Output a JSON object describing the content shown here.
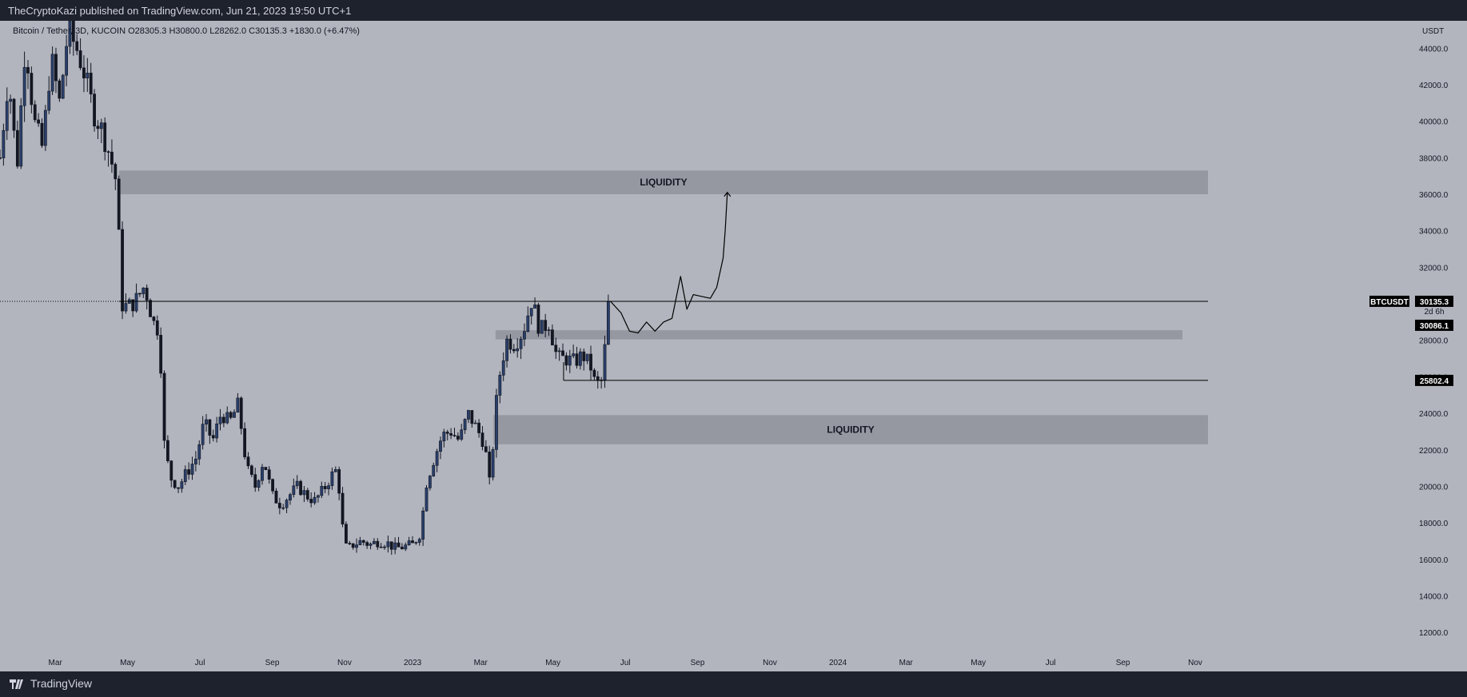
{
  "header": {
    "published": "TheCryptoKazi published on TradingView.com, Jun 21, 2023 19:50 UTC+1"
  },
  "footer": {
    "brand": "TradingView"
  },
  "colors": {
    "background": "#b2b5be",
    "chart_frame": "#1e222d",
    "candle_body": "#131722",
    "candle_up_body": "#2a3f6b",
    "zone_fill": "#9598a1",
    "line": "#000000",
    "label_bg": "#000000",
    "label_text": "#ffffff"
  },
  "icons": {
    "brand_logo": "tradingview-logo-icon"
  },
  "chart_data": {
    "type": "candlestick",
    "symbol_line": "Bitcoin / Tether, 3D, KUCOIN  O28305.3  H30800.0  L28262.0  C30135.3  +1830.0 (+6.47%)",
    "currency": "USDT",
    "ylim": [
      11000,
      45500
    ],
    "y_ticks": [
      12000,
      14000,
      16000,
      18000,
      20000,
      22000,
      24000,
      26000,
      28000,
      30000,
      32000,
      34000,
      36000,
      38000,
      40000,
      42000,
      44000
    ],
    "y_tick_labels": [
      "12000.0",
      "14000.0",
      "16000.0",
      "18000.0",
      "20000.0",
      "22000.0",
      "24000.0",
      "26000.0",
      "28000.0",
      "30000.0",
      "32000.0",
      "34000.0",
      "36000.0",
      "38000.0",
      "40000.0",
      "42000.0",
      "44000.0"
    ],
    "x_ticks": [
      {
        "label": "Mar",
        "t": 2022.16
      },
      {
        "label": "May",
        "t": 2022.33
      },
      {
        "label": "Jul",
        "t": 2022.5
      },
      {
        "label": "Sep",
        "t": 2022.67
      },
      {
        "label": "Nov",
        "t": 2022.84
      },
      {
        "label": "2023",
        "t": 2023.0
      },
      {
        "label": "Mar",
        "t": 2023.16
      },
      {
        "label": "May",
        "t": 2023.33
      },
      {
        "label": "Jul",
        "t": 2023.5
      },
      {
        "label": "Sep",
        "t": 2023.67
      },
      {
        "label": "Nov",
        "t": 2023.84
      },
      {
        "label": "2024",
        "t": 2024.0
      },
      {
        "label": "Mar",
        "t": 2024.16
      },
      {
        "label": "May",
        "t": 2024.33
      },
      {
        "label": "Jul",
        "t": 2024.5
      },
      {
        "label": "Sep",
        "t": 2024.67
      },
      {
        "label": "Nov",
        "t": 2024.84
      }
    ],
    "xlim": [
      2022.03,
      2024.87
    ],
    "price_path": [
      [
        2022.03,
        38000
      ],
      [
        2022.05,
        42500
      ],
      [
        2022.07,
        37500
      ],
      [
        2022.09,
        44500
      ],
      [
        2022.11,
        40000
      ],
      [
        2022.13,
        38500
      ],
      [
        2022.15,
        43500
      ],
      [
        2022.17,
        41000
      ],
      [
        2022.19,
        45000
      ],
      [
        2022.21,
        44000
      ],
      [
        2022.23,
        42500
      ],
      [
        2022.25,
        40500
      ],
      [
        2022.27,
        39500
      ],
      [
        2022.29,
        38000
      ],
      [
        2022.305,
        36500
      ],
      [
        2022.315,
        30000
      ],
      [
        2022.33,
        29800
      ],
      [
        2022.35,
        30200
      ],
      [
        2022.37,
        31000
      ],
      [
        2022.39,
        29000
      ],
      [
        2022.405,
        28500
      ],
      [
        2022.415,
        22500
      ],
      [
        2022.43,
        20500
      ],
      [
        2022.45,
        20000
      ],
      [
        2022.47,
        20800
      ],
      [
        2022.49,
        21500
      ],
      [
        2022.51,
        23500
      ],
      [
        2022.53,
        22500
      ],
      [
        2022.55,
        24000
      ],
      [
        2022.57,
        23500
      ],
      [
        2022.59,
        24500
      ],
      [
        2022.61,
        21000
      ],
      [
        2022.63,
        20000
      ],
      [
        2022.65,
        21500
      ],
      [
        2022.67,
        19500
      ],
      [
        2022.69,
        19000
      ],
      [
        2022.71,
        19500
      ],
      [
        2022.73,
        20000
      ],
      [
        2022.75,
        19500
      ],
      [
        2022.77,
        19200
      ],
      [
        2022.79,
        19800
      ],
      [
        2022.81,
        20600
      ],
      [
        2022.825,
        21000
      ],
      [
        2022.83,
        18500
      ],
      [
        2022.845,
        16500
      ],
      [
        2022.86,
        16800
      ],
      [
        2022.88,
        17000
      ],
      [
        2022.9,
        16800
      ],
      [
        2022.92,
        17000
      ],
      [
        2022.94,
        16900
      ],
      [
        2022.96,
        16600
      ],
      [
        2022.98,
        16700
      ],
      [
        2023.0,
        16800
      ],
      [
        2023.02,
        17500
      ],
      [
        2023.03,
        20000
      ],
      [
        2023.05,
        21500
      ],
      [
        2023.07,
        22800
      ],
      [
        2023.09,
        23000
      ],
      [
        2023.11,
        22500
      ],
      [
        2023.13,
        24000
      ],
      [
        2023.15,
        23200
      ],
      [
        2023.17,
        22300
      ],
      [
        2023.18,
        20000
      ],
      [
        2023.19,
        22500
      ],
      [
        2023.2,
        25500
      ],
      [
        2023.22,
        28000
      ],
      [
        2023.24,
        27800
      ],
      [
        2023.26,
        28500
      ],
      [
        2023.28,
        30200
      ],
      [
        2023.3,
        28500
      ],
      [
        2023.32,
        29000
      ],
      [
        2023.34,
        27000
      ],
      [
        2023.36,
        27000
      ],
      [
        2023.38,
        26800
      ],
      [
        2023.4,
        27200
      ],
      [
        2023.42,
        26500
      ],
      [
        2023.43,
        25500
      ],
      [
        2023.445,
        25800
      ],
      [
        2023.455,
        28300
      ],
      [
        2023.465,
        30135
      ]
    ],
    "current_price": 30135.3,
    "current_price_label": "30135.3",
    "symbol_tag": "BTCUSDT",
    "countdown": "2d 6h",
    "secondary_price_label": "30086.1",
    "support_level": 25802.4,
    "support_label": "25802.4",
    "support_start_t": 2023.355,
    "zones": [
      {
        "name": "upper-liquidity",
        "label": "LIQUIDITY",
        "y_from": 36000,
        "y_to": 37300,
        "t_from": 2022.31,
        "t_to": 2024.87
      },
      {
        "name": "mid-gray",
        "label": "",
        "y_from": 28050,
        "y_to": 28550,
        "t_from": 2023.195,
        "t_to": 2024.81
      },
      {
        "name": "lower-liquidity",
        "label": "LIQUIDITY",
        "y_from": 22300,
        "y_to": 23900,
        "t_from": 2023.19,
        "t_to": 2024.87
      }
    ],
    "projection": [
      [
        2023.465,
        30135
      ],
      [
        2023.49,
        29500
      ],
      [
        2023.51,
        28500
      ],
      [
        2023.53,
        28400
      ],
      [
        2023.55,
        29000
      ],
      [
        2023.57,
        28500
      ],
      [
        2023.59,
        29000
      ],
      [
        2023.61,
        29200
      ],
      [
        2023.63,
        31500
      ],
      [
        2023.645,
        29700
      ],
      [
        2023.66,
        30500
      ],
      [
        2023.68,
        30400
      ],
      [
        2023.7,
        30300
      ],
      [
        2023.715,
        30900
      ],
      [
        2023.73,
        32500
      ],
      [
        2023.735,
        34000
      ],
      [
        2023.74,
        36100
      ]
    ]
  }
}
